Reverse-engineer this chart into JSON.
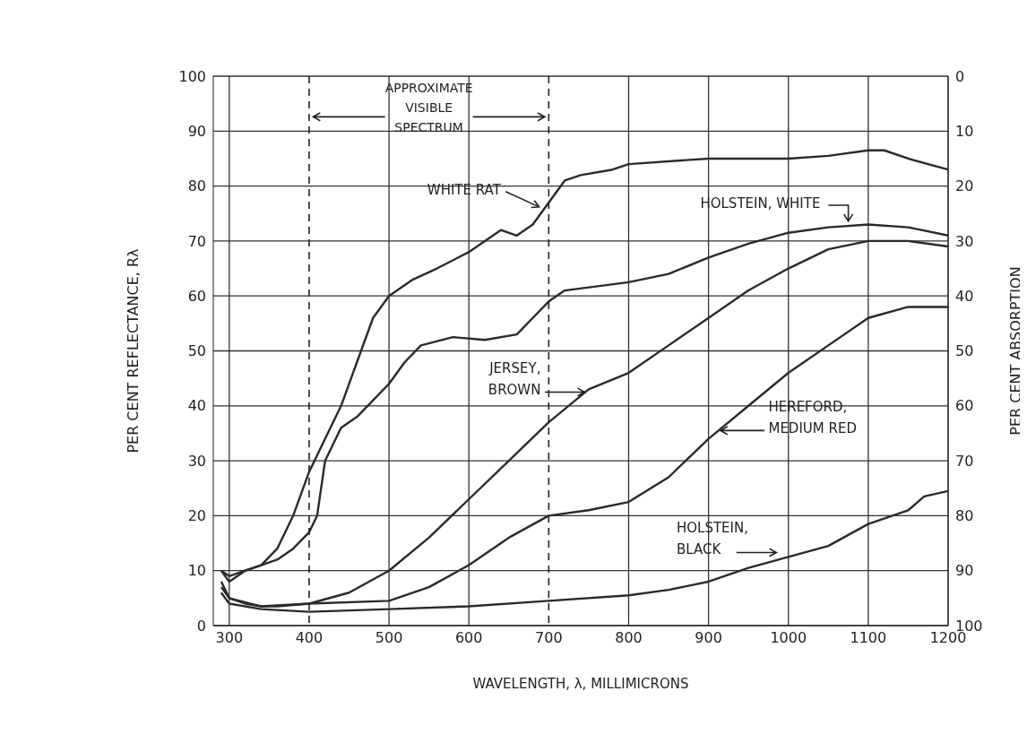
{
  "chart_data": {
    "type": "line",
    "xlabel": "WAVELENGTH,  λ,  MILLIMICRONS",
    "ylabel": "PER CENT REFLECTANCE, Rλ",
    "y2label": "PER CENT ABSORPTION",
    "xlim": [
      280,
      1200
    ],
    "xticks": [
      300,
      400,
      500,
      600,
      700,
      800,
      900,
      1000,
      1100,
      1200
    ],
    "ylim": [
      0,
      100
    ],
    "yticks": [
      0,
      10,
      20,
      30,
      40,
      50,
      60,
      70,
      80,
      90,
      100
    ],
    "y2lim": [
      100,
      0
    ],
    "y2ticks": [
      0,
      10,
      20,
      30,
      40,
      50,
      60,
      70,
      80,
      90,
      100
    ],
    "grid": true,
    "legend": false,
    "marker": "none",
    "line_style": "solid",
    "annotations": [
      "APPROXIMATE VISIBLE SPECTRUM"
    ],
    "series": [
      {
        "name": "WHITE RAT",
        "color": "#2a2a2a",
        "x": [
          290,
          300,
          320,
          340,
          360,
          380,
          400,
          420,
          440,
          460,
          480,
          500,
          530,
          560,
          600,
          620,
          640,
          660,
          680,
          700,
          720,
          740,
          780,
          800,
          900,
          950,
          1000,
          1050,
          1100,
          1120,
          1150,
          1200
        ],
        "values": [
          10,
          9,
          10,
          11,
          14,
          20,
          28,
          34,
          40,
          48,
          56,
          60,
          63,
          65,
          68,
          70,
          72,
          71,
          73,
          77,
          81,
          82,
          83,
          84,
          85,
          85,
          85,
          85.5,
          86.5,
          86.5,
          85,
          83
        ]
      },
      {
        "name": "HOLSTEIN, WHITE",
        "color": "#2a2a2a",
        "x": [
          290,
          300,
          320,
          340,
          360,
          380,
          400,
          410,
          420,
          440,
          460,
          480,
          500,
          520,
          540,
          580,
          620,
          660,
          680,
          700,
          720,
          800,
          850,
          900,
          950,
          1000,
          1050,
          1100,
          1150,
          1200
        ],
        "values": [
          10,
          8,
          10,
          11,
          12,
          14,
          17,
          20,
          30,
          36,
          38,
          41,
          44,
          48,
          51,
          52.5,
          52,
          53,
          56,
          59,
          61,
          62.5,
          64,
          67,
          69.5,
          71.5,
          72.5,
          73,
          72.5,
          71
        ]
      },
      {
        "name": "JERSEY, BROWN",
        "color": "#2a2a2a",
        "x": [
          290,
          300,
          320,
          340,
          360,
          400,
          450,
          500,
          550,
          600,
          650,
          700,
          750,
          800,
          850,
          900,
          950,
          1000,
          1050,
          1100,
          1150,
          1200
        ],
        "values": [
          7,
          5,
          4,
          3.5,
          3.5,
          4,
          6,
          10,
          16,
          23,
          30,
          37,
          43,
          46,
          51,
          56,
          61,
          65,
          68.5,
          70,
          70,
          69
        ]
      },
      {
        "name": "HEREFORD, MEDIUM RED",
        "color": "#2a2a2a",
        "x": [
          290,
          300,
          340,
          400,
          500,
          550,
          600,
          650,
          700,
          750,
          800,
          850,
          900,
          950,
          1000,
          1050,
          1100,
          1150,
          1200
        ],
        "values": [
          8,
          5,
          3.5,
          4,
          4.5,
          7,
          11,
          16,
          20,
          21,
          22.5,
          27,
          34,
          40,
          46,
          51,
          56,
          58,
          58
        ]
      },
      {
        "name": "HOLSTEIN, BLACK",
        "color": "#2a2a2a",
        "x": [
          290,
          300,
          340,
          400,
          500,
          600,
          700,
          800,
          850,
          900,
          950,
          1000,
          1050,
          1100,
          1150,
          1170,
          1200
        ],
        "values": [
          6,
          4,
          3,
          2.5,
          3,
          3.5,
          4.5,
          5.5,
          6.5,
          8,
          10.5,
          12.5,
          14.5,
          18.5,
          21,
          23.5,
          24.5
        ]
      }
    ]
  }
}
